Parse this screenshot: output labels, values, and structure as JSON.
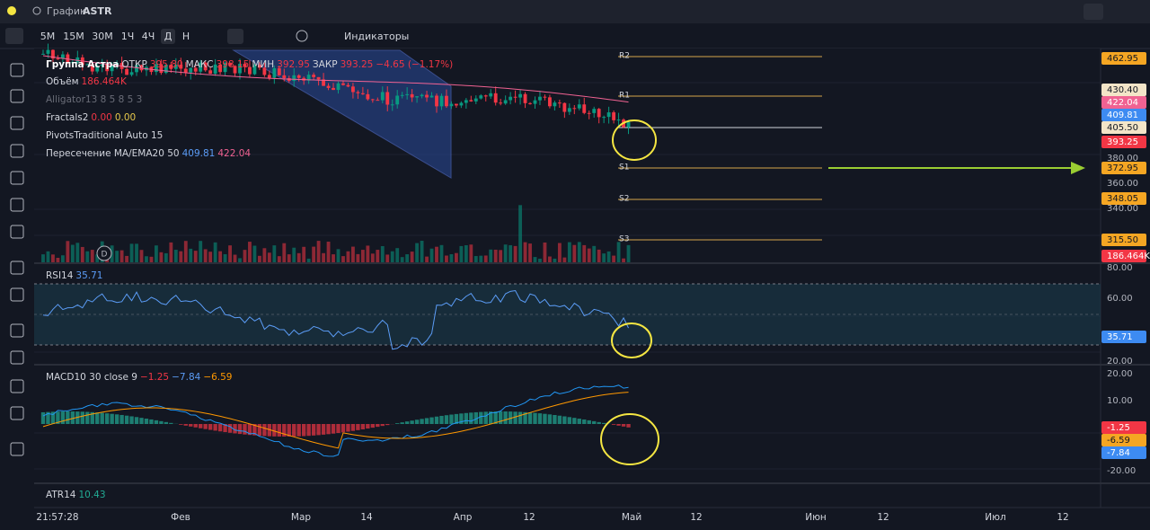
{
  "window": {
    "title_prefix": "График",
    "symbol": "ASTR"
  },
  "toolbar": {
    "intervals": [
      "5M",
      "15M",
      "30M",
      "1Ч",
      "4Ч",
      "Д",
      "Н"
    ],
    "indicators": "Индикаторы"
  },
  "legend": {
    "main": [
      "Группа Астра",
      "ОТКР",
      "395.80",
      "МАКС",
      "398.15",
      "МИН",
      "392.95",
      "ЗАКР",
      "393.25",
      "−4.65 (−1.17%)"
    ],
    "volume": [
      "Объём",
      "186.464K"
    ],
    "alligator": "Alligator13 8 5 8 5 3",
    "fractals": [
      "Fractals2",
      "0.00",
      "0.00"
    ],
    "pivots": "PivotsTraditional Auto 15",
    "ma_cross": [
      "Пересечение MA/EMA20 50",
      "409.81",
      "422.04"
    ],
    "rsi": [
      "RSI14",
      "35.71"
    ],
    "macd": [
      "MACD10 30 close 9",
      "−1.25",
      "−7.84",
      "−6.59"
    ],
    "atr": [
      "ATR14",
      "10.43"
    ]
  },
  "pivot_levels": [
    "R2",
    "R1",
    "S1",
    "S2",
    "S3"
  ],
  "price_axis": [
    {
      "text": "462.95",
      "kind": "orange"
    },
    {
      "text": "430.40",
      "kind": "light"
    },
    {
      "text": "422.04",
      "kind": "pink"
    },
    {
      "text": "409.81",
      "kind": "blue"
    },
    {
      "text": "405.50",
      "kind": "light"
    },
    {
      "text": "393.25",
      "kind": "red"
    },
    {
      "text": "380.00",
      "kind": "plain"
    },
    {
      "text": "372.95",
      "kind": "orange"
    },
    {
      "text": "360.00",
      "kind": "plain"
    },
    {
      "text": "348.05",
      "kind": "orange"
    },
    {
      "text": "340.00",
      "kind": "plain"
    },
    {
      "text": "315.50",
      "kind": "orange"
    },
    {
      "text": "186.464K",
      "kind": "red"
    }
  ],
  "rsi_axis": [
    {
      "text": "80.00",
      "kind": "plain"
    },
    {
      "text": "60.00",
      "kind": "plain"
    },
    {
      "text": "35.71",
      "kind": "blue"
    },
    {
      "text": "20.00",
      "kind": "plain"
    }
  ],
  "macd_axis": [
    {
      "text": "20.00",
      "kind": "plain"
    },
    {
      "text": "10.00",
      "kind": "plain"
    },
    {
      "text": "-1.25",
      "kind": "red"
    },
    {
      "text": "-6.59",
      "kind": "orange"
    },
    {
      "text": "-7.84",
      "kind": "blue"
    },
    {
      "text": "-20.00",
      "kind": "plain"
    }
  ],
  "time_axis": [
    "21:57:28",
    "Фев",
    "Мар",
    "14",
    "Апр",
    "12",
    "Май",
    "12",
    "Июн",
    "12",
    "Июл",
    "12"
  ],
  "volume_marker": "D"
}
